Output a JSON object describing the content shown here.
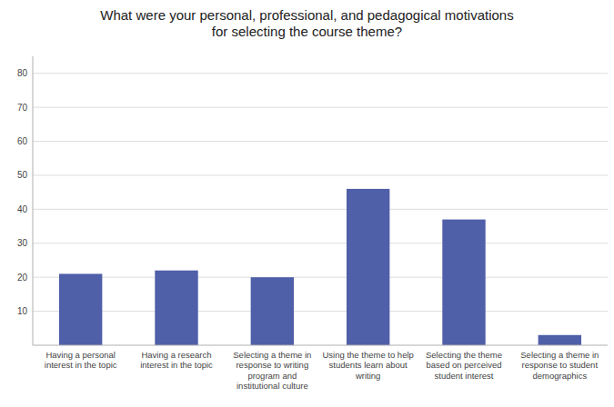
{
  "chart_data": {
    "type": "bar",
    "title": "What were your personal, professional, and pedagogical motivations\nfor selecting the course theme?",
    "categories": [
      "Having a personal\ninterest in the topic",
      "Having a research\ninterest in the topic",
      "Selecting a theme in\nresponse to writing\nprogram and\ninstitutional culture",
      "Using the theme to help\nstudents learn about\nwriting",
      "Selecting the theme\nbased on perceived\nstudent interest",
      "Selecting a theme in\nresponse to student\ndemographics"
    ],
    "values": [
      21,
      22,
      20,
      46,
      37,
      3
    ],
    "color": "#4F5FA8",
    "ylim": [
      0,
      85
    ],
    "yticks": [
      10,
      20,
      30,
      40,
      50,
      60,
      70,
      80
    ],
    "grid": true
  }
}
